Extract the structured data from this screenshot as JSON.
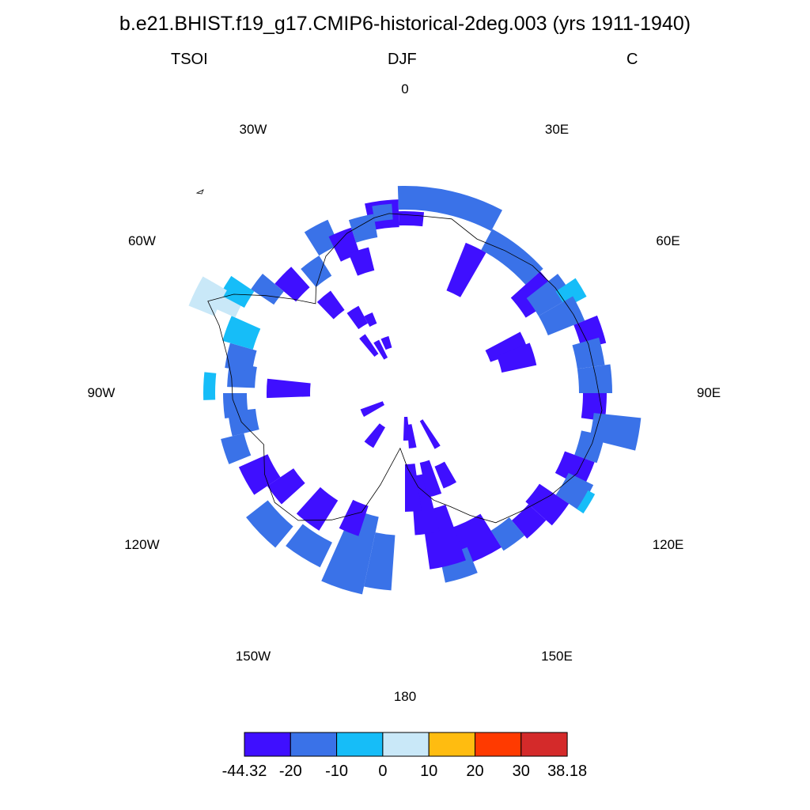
{
  "header": {
    "title": "b.e21.BHIST.f19_g17.CMIP6-historical-2deg.003 (yrs 1911-1940)",
    "variable": "TSOI",
    "season": "DJF",
    "units": "C"
  },
  "map": {
    "projection": "south-polar-stereographic",
    "longitude_labels": [
      {
        "text": "0",
        "lon": 0
      },
      {
        "text": "30E",
        "lon": 30
      },
      {
        "text": "60E",
        "lon": 60
      },
      {
        "text": "90E",
        "lon": 90
      },
      {
        "text": "120E",
        "lon": 120
      },
      {
        "text": "150E",
        "lon": 150
      },
      {
        "text": "180",
        "lon": 180
      },
      {
        "text": "150W",
        "lon": -150
      },
      {
        "text": "120W",
        "lon": -120
      },
      {
        "text": "90W",
        "lon": -90
      },
      {
        "text": "60W",
        "lon": -60
      },
      {
        "text": "30W",
        "lon": -30
      }
    ]
  },
  "colorbar": {
    "colors": [
      "#3f0fff",
      "#3a72e8",
      "#16bdf8",
      "#c9e8f8",
      "#ffbc10",
      "#ff3a00",
      "#d42a2a"
    ],
    "labels": [
      "-44.32",
      "-20",
      "-10",
      "0",
      "10",
      "20",
      "30",
      "38.18"
    ]
  }
}
